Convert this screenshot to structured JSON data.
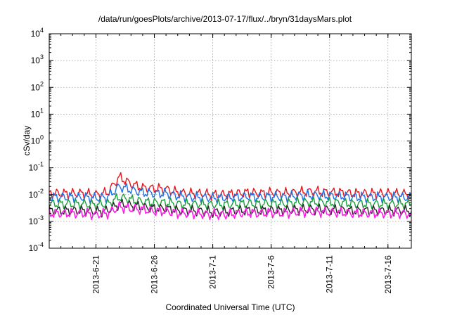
{
  "chart_data": {
    "type": "line",
    "title": "/data/run/goesPlots/archive/2013-07-17/flux/../bryn/31daysMars.plot",
    "xlabel": "Coordinated Universal Time (UTC)",
    "ylabel": "cSv/day",
    "y_scale": "log",
    "ylim": [
      0.0001,
      10000
    ],
    "y_ticks": [
      {
        "exp": "-4",
        "value": 0.0001
      },
      {
        "exp": "-3",
        "value": 0.001
      },
      {
        "exp": "-2",
        "value": 0.01
      },
      {
        "exp": "-1",
        "value": 0.1
      },
      {
        "exp": "0",
        "value": 1
      },
      {
        "exp": "1",
        "value": 10
      },
      {
        "exp": "2",
        "value": 100
      },
      {
        "exp": "3",
        "value": 1000
      },
      {
        "exp": "4",
        "value": 10000
      }
    ],
    "xlim": [
      "2013-06-17",
      "2013-07-18"
    ],
    "x_ticks": [
      {
        "label": "2013-6-21",
        "date": "2013-06-21"
      },
      {
        "label": "2013-6-26",
        "date": "2013-06-26"
      },
      {
        "label": "2013-7-1",
        "date": "2013-07-01"
      },
      {
        "label": "2013-7-6",
        "date": "2013-07-06"
      },
      {
        "label": "2013-7-11",
        "date": "2013-07-11"
      },
      {
        "label": "2013-7-16",
        "date": "2013-07-16"
      }
    ],
    "grid": true,
    "x": [
      "2013-06-17",
      "2013-06-18",
      "2013-06-19",
      "2013-06-20",
      "2013-06-21",
      "2013-06-22",
      "2013-06-23",
      "2013-06-24",
      "2013-06-25",
      "2013-06-26",
      "2013-06-27",
      "2013-06-28",
      "2013-06-29",
      "2013-06-30",
      "2013-07-01",
      "2013-07-02",
      "2013-07-03",
      "2013-07-04",
      "2013-07-05",
      "2013-07-06",
      "2013-07-07",
      "2013-07-08",
      "2013-07-09",
      "2013-07-10",
      "2013-07-11",
      "2013-07-12",
      "2013-07-13",
      "2013-07-14",
      "2013-07-15",
      "2013-07-16",
      "2013-07-17",
      "2013-07-18"
    ],
    "series": [
      {
        "color": "#e8141c",
        "values": [
          0.011,
          0.011,
          0.011,
          0.011,
          0.01,
          0.012,
          0.045,
          0.025,
          0.018,
          0.017,
          0.016,
          0.012,
          0.011,
          0.011,
          0.01,
          0.01,
          0.011,
          0.012,
          0.011,
          0.012,
          0.011,
          0.012,
          0.013,
          0.013,
          0.012,
          0.012,
          0.011,
          0.011,
          0.011,
          0.011,
          0.011,
          0.01
        ]
      },
      {
        "color": "#1e6fe8",
        "values": [
          0.008,
          0.008,
          0.008,
          0.008,
          0.0075,
          0.008,
          0.02,
          0.015,
          0.012,
          0.011,
          0.011,
          0.009,
          0.008,
          0.008,
          0.0075,
          0.0078,
          0.008,
          0.0085,
          0.008,
          0.0085,
          0.008,
          0.009,
          0.0095,
          0.0095,
          0.009,
          0.009,
          0.008,
          0.008,
          0.008,
          0.008,
          0.008,
          0.0078
        ]
      },
      {
        "color": "#1a9e3c",
        "values": [
          0.0045,
          0.0045,
          0.0045,
          0.0045,
          0.0042,
          0.0045,
          0.008,
          0.0065,
          0.0055,
          0.005,
          0.005,
          0.0045,
          0.0045,
          0.0044,
          0.0042,
          0.0043,
          0.0045,
          0.0047,
          0.0045,
          0.0047,
          0.0045,
          0.005,
          0.0052,
          0.0052,
          0.005,
          0.005,
          0.0046,
          0.0045,
          0.0045,
          0.0045,
          0.0045,
          0.0044
        ]
      },
      {
        "color": "#2a2a2a",
        "values": [
          0.0025,
          0.0025,
          0.0025,
          0.0025,
          0.0023,
          0.0025,
          0.0045,
          0.004,
          0.0035,
          0.003,
          0.003,
          0.0025,
          0.0025,
          0.0024,
          0.0022,
          0.0023,
          0.0025,
          0.0026,
          0.0025,
          0.0026,
          0.0025,
          0.0027,
          0.0028,
          0.0028,
          0.0027,
          0.0027,
          0.0025,
          0.0025,
          0.0025,
          0.0025,
          0.0025,
          0.0024
        ]
      },
      {
        "color": "#ff1ee8",
        "values": [
          0.002,
          0.002,
          0.002,
          0.002,
          0.0018,
          0.002,
          0.0035,
          0.003,
          0.0028,
          0.0024,
          0.0024,
          0.002,
          0.002,
          0.0019,
          0.0018,
          0.0018,
          0.002,
          0.0021,
          0.002,
          0.0021,
          0.002,
          0.0022,
          0.0023,
          0.0023,
          0.0022,
          0.0022,
          0.002,
          0.002,
          0.002,
          0.002,
          0.002,
          0.0019
        ]
      }
    ]
  }
}
